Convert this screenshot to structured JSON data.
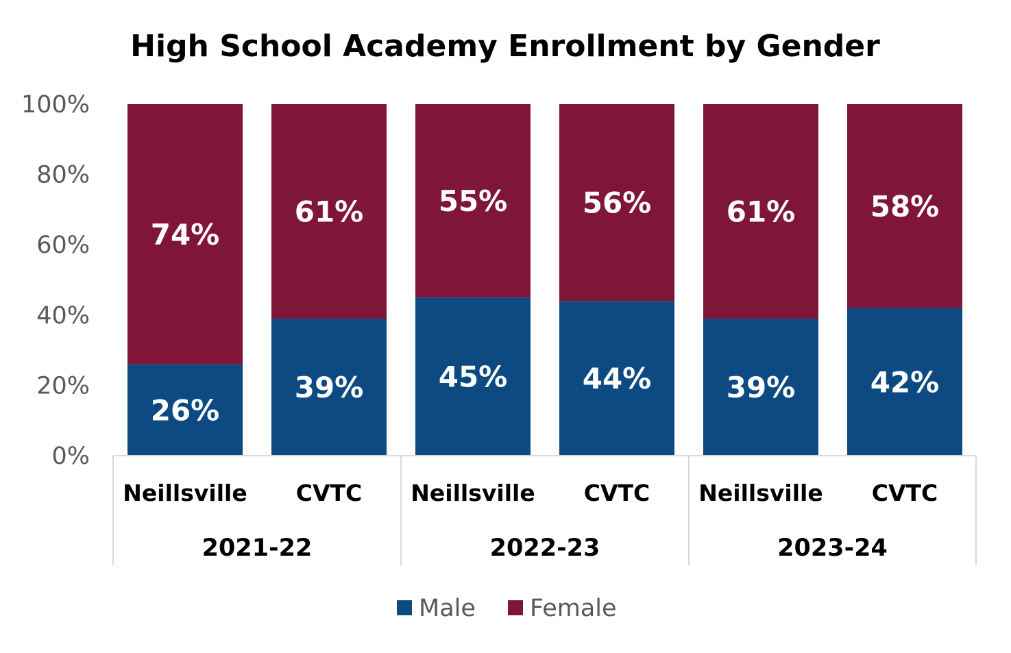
{
  "chart_data": {
    "type": "bar",
    "stacked": true,
    "normalized": true,
    "title": "High School Academy Enrollment by Gender",
    "groups": [
      "2021-22",
      "2022-23",
      "2023-24"
    ],
    "categories": [
      "Neillsville",
      "CVTC",
      "Neillsville",
      "CVTC",
      "Neillsville",
      "CVTC"
    ],
    "category_group": [
      0,
      0,
      1,
      1,
      2,
      2
    ],
    "series": [
      {
        "name": "Male",
        "color": "#0d4a82",
        "values": [
          26,
          39,
          45,
          44,
          39,
          42
        ],
        "labels": [
          "26%",
          "39%",
          "45%",
          "44%",
          "39%",
          "42%"
        ]
      },
      {
        "name": "Female",
        "color": "#7f1537",
        "values": [
          74,
          61,
          55,
          56,
          61,
          58
        ],
        "labels": [
          "74%",
          "61%",
          "55%",
          "56%",
          "61%",
          "58%"
        ]
      }
    ],
    "yticks": [
      "0%",
      "20%",
      "40%",
      "60%",
      "80%",
      "100%"
    ],
    "ylim": [
      0,
      100
    ],
    "grid": false,
    "legend": "bottom"
  }
}
